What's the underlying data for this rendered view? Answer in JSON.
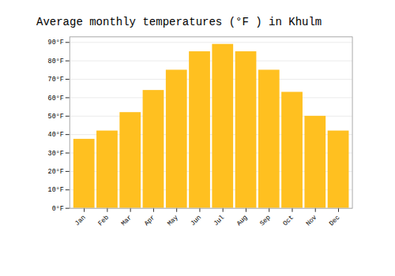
{
  "chart_data": {
    "type": "bar",
    "title": "Average monthly temperatures (°F ) in Khulm",
    "categories": [
      "Jan",
      "Feb",
      "Mar",
      "Apr",
      "May",
      "Jun",
      "Jul",
      "Aug",
      "Sep",
      "Oct",
      "Nov",
      "Dec"
    ],
    "values": [
      37.5,
      42,
      52,
      64,
      75,
      85,
      89,
      85,
      75,
      63,
      50,
      42
    ],
    "color": "#FFC020",
    "ylim": [
      0,
      93
    ],
    "yticks": [
      {
        "value": 0,
        "label": "0°F"
      },
      {
        "value": 10,
        "label": "10°F"
      },
      {
        "value": 20,
        "label": "20°F"
      },
      {
        "value": 30,
        "label": "30°F"
      },
      {
        "value": 40,
        "label": "40°F"
      },
      {
        "value": 50,
        "label": "50°F"
      },
      {
        "value": 60,
        "label": "60°F"
      },
      {
        "value": 70,
        "label": "70°F"
      },
      {
        "value": 80,
        "label": "80°F"
      },
      {
        "value": 90,
        "label": "90°F"
      }
    ],
    "grid": true
  }
}
